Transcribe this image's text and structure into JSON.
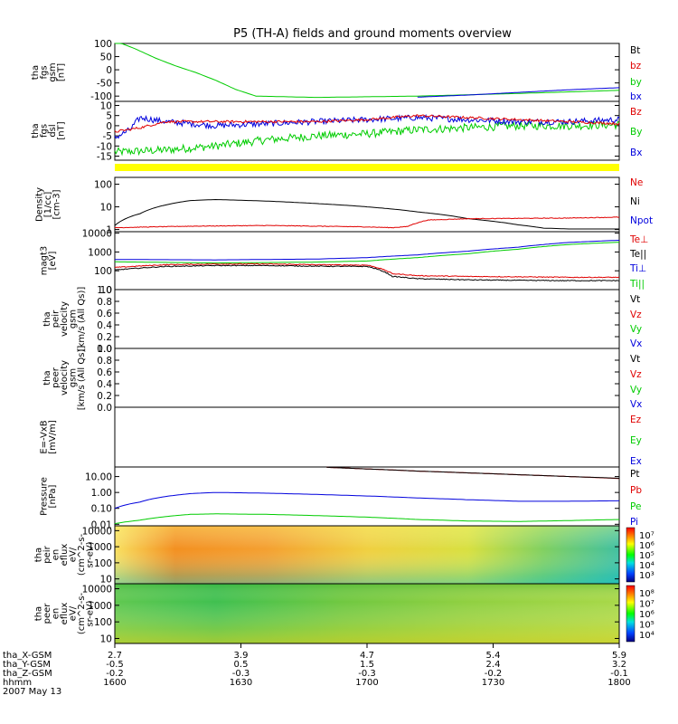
{
  "chart_data": {
    "type": "line",
    "title": "P5 (TH-A) fields and ground moments overview",
    "colors": {
      "black": "#000000",
      "red": "#e00000",
      "green": "#00cc00",
      "blue": "#0000dd",
      "yellow": "#ffff00"
    },
    "time_axis": {
      "start": "1600",
      "end": "1800",
      "ticks": [
        "1600",
        "1630",
        "1700",
        "1730",
        "1800"
      ]
    },
    "panels": [
      {
        "id": "fgs-gsm",
        "ylabel": [
          "tha",
          "fgs",
          "gsm",
          "[nT]"
        ],
        "scale": "linear",
        "ylim": [
          -120,
          100
        ],
        "yticks": [
          "100",
          "50",
          "0",
          "-50",
          "-100"
        ],
        "ytick_values": [
          100,
          50,
          0,
          -50,
          -100
        ],
        "legend": [
          {
            "label": "Bt",
            "color": "#000000"
          },
          {
            "label": "bz",
            "color": "#e00000"
          },
          {
            "label": "by",
            "color": "#00cc00"
          },
          {
            "label": "bx",
            "color": "#0000dd"
          }
        ],
        "series": [
          {
            "name": "by",
            "color": "#00cc00",
            "x": [
              0,
              0.04,
              0.08,
              0.12,
              0.16,
              0.2,
              0.24,
              0.28,
              0.4,
              0.6,
              0.8,
              1.0
            ],
            "y": [
              110,
              80,
              45,
              15,
              -10,
              -40,
              -75,
              -100,
              -105,
              -100,
              -90,
              -78
            ]
          },
          {
            "name": "bx",
            "color": "#0000dd",
            "x": [
              0.6,
              0.7,
              0.8,
              0.9,
              1.0
            ],
            "y": [
              -104,
              -96,
              -86,
              -76,
              -68
            ]
          }
        ]
      },
      {
        "id": "fgs-dsl",
        "ylabel": [
          "tha",
          "fgs",
          "dsl",
          "[nT]"
        ],
        "scale": "linear",
        "ylim": [
          -17,
          12
        ],
        "yticks": [
          "10",
          "5",
          "0",
          "-5",
          "-10",
          "-15"
        ],
        "ytick_values": [
          10,
          5,
          0,
          -5,
          -10,
          -15
        ],
        "legend": [
          {
            "label": "Bz",
            "color": "#e00000"
          },
          {
            "label": "By",
            "color": "#00cc00"
          },
          {
            "label": "Bx",
            "color": "#0000dd"
          }
        ],
        "series": [
          {
            "name": "By",
            "color": "#00cc00",
            "noise": 2,
            "x": [
              0,
              0.1,
              0.2,
              0.3,
              0.4,
              0.5,
              0.6,
              0.7,
              0.8,
              0.9,
              1.0
            ],
            "y": [
              -13,
              -12,
              -10,
              -7,
              -5,
              -4,
              -2,
              -1,
              0,
              0,
              0.5
            ]
          },
          {
            "name": "Bx",
            "color": "#0000dd",
            "noise": 1.5,
            "x": [
              0,
              0.03,
              0.05,
              0.1,
              0.2,
              0.3,
              0.4,
              0.5,
              0.6,
              0.7,
              0.8,
              0.9,
              1.0
            ],
            "y": [
              -6,
              -2,
              4,
              2,
              0,
              1,
              2,
              3,
              4,
              3,
              2,
              2,
              3
            ]
          },
          {
            "name": "Bz",
            "color": "#e00000",
            "noise": 0.6,
            "x": [
              0,
              0.05,
              0.1,
              0.2,
              0.3,
              0.4,
              0.5,
              0.6,
              0.7,
              0.8,
              0.9,
              1.0
            ],
            "y": [
              -3,
              -1,
              2,
              2,
              2,
              2,
              3,
              5,
              4,
              3,
              2,
              1
            ]
          }
        ]
      },
      {
        "id": "density",
        "ylabel": [
          "Density",
          "[1/cc]",
          "[cm-3]"
        ],
        "scale": "log",
        "ylim": [
          0.8,
          200
        ],
        "yticks": [
          "100",
          "10",
          "1"
        ],
        "ytick_values": [
          100,
          10,
          1
        ],
        "legend": [
          {
            "label": "Ne",
            "color": "#e00000"
          },
          {
            "label": "Ni",
            "color": "#000000"
          },
          {
            "label": "Npot",
            "color": "#0000dd"
          }
        ],
        "series": [
          {
            "name": "Ni",
            "color": "#000000",
            "x": [
              0,
              0.05,
              0.1,
              0.15,
              0.2,
              0.3,
              0.4,
              0.5,
              0.6,
              0.7,
              0.8,
              0.85,
              0.9,
              1.0
            ],
            "y": [
              1.5,
              5,
              12,
              19,
              21,
              18,
              14,
              10,
              6,
              3,
              1.6,
              1.15,
              1.05,
              1.05
            ]
          },
          {
            "name": "Ne",
            "color": "#e00000",
            "noise": 0.03,
            "x": [
              0,
              0.15,
              0.3,
              0.45,
              0.5,
              0.55,
              0.58,
              0.62,
              0.7,
              0.8,
              0.9,
              1.0
            ],
            "y": [
              1.2,
              1.4,
              1.5,
              1.35,
              1.3,
              1.2,
              1.35,
              2.6,
              3.0,
              3.1,
              3.2,
              3.5
            ]
          }
        ]
      },
      {
        "id": "temperature",
        "ylabel": [
          "magt3",
          "[eV]"
        ],
        "scale": "log",
        "ylim": [
          10,
          12000
        ],
        "yticks": [
          "10000",
          "1000",
          "100",
          "10"
        ],
        "ytick_values": [
          10000,
          1000,
          100,
          10
        ],
        "legend": [
          {
            "label": "Te⊥",
            "color": "#e00000"
          },
          {
            "label": "Te||",
            "color": "#000000"
          },
          {
            "label": "Ti⊥",
            "color": "#0000dd"
          },
          {
            "label": "Ti||",
            "color": "#00cc00"
          }
        ],
        "series": [
          {
            "name": "Ti⊥",
            "color": "#0000dd",
            "x": [
              0,
              0.2,
              0.4,
              0.5,
              0.6,
              0.7,
              0.8,
              0.9,
              1.0
            ],
            "y": [
              400,
              380,
              420,
              500,
              700,
              1100,
              1800,
              3200,
              4200
            ]
          },
          {
            "name": "Ti||",
            "color": "#00cc00",
            "x": [
              0,
              0.2,
              0.4,
              0.5,
              0.6,
              0.7,
              0.8,
              0.9,
              1.0
            ],
            "y": [
              300,
              260,
              290,
              330,
              500,
              800,
              1400,
              2500,
              3300
            ]
          },
          {
            "name": "Te⊥",
            "color": "#e00000",
            "noise": 0.05,
            "x": [
              0,
              0.1,
              0.2,
              0.3,
              0.4,
              0.5,
              0.55,
              0.6,
              0.7,
              0.8,
              0.9,
              1.0
            ],
            "y": [
              150,
              210,
              230,
              230,
              210,
              200,
              70,
              55,
              50,
              48,
              45,
              45
            ]
          },
          {
            "name": "Te||",
            "color": "#000000",
            "noise": 0.05,
            "x": [
              0,
              0.1,
              0.2,
              0.3,
              0.4,
              0.5,
              0.55,
              0.6,
              0.7,
              0.8,
              0.9,
              1.0
            ],
            "y": [
              110,
              170,
              190,
              190,
              175,
              170,
              50,
              38,
              33,
              31,
              30,
              30
            ]
          }
        ]
      },
      {
        "id": "peir-velocity",
        "ylabel": [
          "tha",
          "peir",
          "velocity",
          "gsm",
          "[km/s (All Qs)]"
        ],
        "scale": "linear",
        "ylim": [
          0,
          1
        ],
        "yticks": [
          "1.0",
          "0.8",
          "0.6",
          "0.4",
          "0.2",
          "0.0"
        ],
        "ytick_values": [
          1.0,
          0.8,
          0.6,
          0.4,
          0.2,
          0.0
        ],
        "legend": [
          {
            "label": "Vt",
            "color": "#000000"
          },
          {
            "label": "Vz",
            "color": "#e00000"
          },
          {
            "label": "Vy",
            "color": "#00cc00"
          },
          {
            "label": "Vx",
            "color": "#0000dd"
          }
        ],
        "series": []
      },
      {
        "id": "peer-velocity",
        "ylabel": [
          "tha",
          "peer",
          "velocity",
          "gsm",
          "[km/s (All Qs)]"
        ],
        "scale": "linear",
        "ylim": [
          0,
          1
        ],
        "yticks": [
          "1.0",
          "0.8",
          "0.6",
          "0.4",
          "0.2",
          "0.0"
        ],
        "ytick_values": [
          1.0,
          0.8,
          0.6,
          0.4,
          0.2,
          0.0
        ],
        "legend": [
          {
            "label": "Vt",
            "color": "#000000"
          },
          {
            "label": "Vz",
            "color": "#e00000"
          },
          {
            "label": "Vy",
            "color": "#00cc00"
          },
          {
            "label": "Vx",
            "color": "#0000dd"
          }
        ],
        "series": []
      },
      {
        "id": "efield",
        "ylabel": [
          "E=-VxB",
          "[mV/m]"
        ],
        "scale": "linear",
        "ylim": [
          0,
          1
        ],
        "yticks": [],
        "ytick_values": [],
        "legend": [
          {
            "label": "Ez",
            "color": "#e00000"
          },
          {
            "label": "Ey",
            "color": "#00cc00"
          },
          {
            "label": "Ex",
            "color": "#0000dd"
          }
        ],
        "series": []
      },
      {
        "id": "pressure",
        "ylabel": [
          "Pressure",
          "[nPa]"
        ],
        "scale": "log",
        "ylim": [
          0.008,
          40
        ],
        "yticks": [
          "10.00",
          "1.00",
          "0.10",
          "0.01"
        ],
        "ytick_values": [
          10,
          1,
          0.1,
          0.01
        ],
        "legend": [
          {
            "label": "Pt",
            "color": "#000000"
          },
          {
            "label": "Pb",
            "color": "#e00000"
          },
          {
            "label": "Pe",
            "color": "#00cc00"
          },
          {
            "label": "Pi",
            "color": "#0000dd"
          }
        ],
        "series": [
          {
            "name": "Pi",
            "color": "#0000dd",
            "x": [
              0,
              0.05,
              0.1,
              0.15,
              0.2,
              0.3,
              0.4,
              0.5,
              0.6,
              0.7,
              0.8,
              0.9,
              1.0
            ],
            "y": [
              0.1,
              0.25,
              0.55,
              0.85,
              1.0,
              0.9,
              0.75,
              0.6,
              0.45,
              0.35,
              0.28,
              0.28,
              0.3
            ]
          },
          {
            "name": "Pe",
            "color": "#00cc00",
            "x": [
              0,
              0.05,
              0.1,
              0.15,
              0.2,
              0.3,
              0.4,
              0.5,
              0.6,
              0.7,
              0.8,
              0.9,
              1.0
            ],
            "y": [
              0.011,
              0.018,
              0.03,
              0.042,
              0.045,
              0.042,
              0.035,
              0.028,
              0.02,
              0.016,
              0.015,
              0.017,
              0.02
            ]
          },
          {
            "name": "Pb",
            "color": "#e00000",
            "x": [
              0.42,
              0.5,
              0.6,
              0.7,
              0.8,
              0.9,
              1.0
            ],
            "y": [
              38,
              30,
              22,
              17,
              13,
              10,
              7.5
            ]
          },
          {
            "name": "Pt",
            "color": "#000000",
            "x": [
              0.42,
              0.5,
              0.6,
              0.7,
              0.8,
              0.9,
              1.0
            ],
            "y": [
              38,
              30,
              22,
              17,
              13,
              10,
              7.8
            ]
          }
        ]
      },
      {
        "id": "peir-spectrogram",
        "type": "heatmap",
        "ylabel": [
          "tha",
          "peir",
          "en",
          "eflux",
          "eV/",
          "(cm^2-s-",
          "sr-eV)"
        ],
        "scale": "log",
        "ylim": [
          5,
          20000
        ],
        "yticks": [
          "10000",
          "1000",
          "100",
          "10"
        ],
        "ytick_values": [
          10000,
          1000,
          100,
          10
        ],
        "colorbar": {
          "ticks": [
            "10⁷",
            "10⁶",
            "10⁵",
            "10⁴",
            "10³"
          ]
        }
      },
      {
        "id": "peer-spectrogram",
        "type": "heatmap",
        "ylabel": [
          "tha",
          "peer",
          "en",
          "eflux",
          "eV/",
          "(cm^2-s-",
          "sr-eV)"
        ],
        "scale": "log",
        "ylim": [
          5,
          20000
        ],
        "yticks": [
          "10000",
          "1000",
          "100",
          "10"
        ],
        "ytick_values": [
          10000,
          1000,
          100,
          10
        ],
        "colorbar": {
          "ticks": [
            "10⁸",
            "10⁷",
            "10⁶",
            "10⁵",
            "10⁴"
          ]
        }
      }
    ],
    "x_axis_rows": [
      {
        "label": "tha_X-GSM",
        "values": [
          "2.7",
          "3.9",
          "4.7",
          "5.4",
          "5.9"
        ]
      },
      {
        "label": "tha_Y-GSM",
        "values": [
          "-0.5",
          "0.5",
          "1.5",
          "2.4",
          "3.2"
        ]
      },
      {
        "label": "tha_Z-GSM",
        "values": [
          "-0.2",
          "-0.3",
          "-0.3",
          "-0.2",
          "-0.1"
        ]
      },
      {
        "label": "hhmm",
        "values": [
          "1600",
          "1630",
          "1700",
          "1730",
          "1800"
        ]
      }
    ],
    "date": "2007 May 13"
  }
}
